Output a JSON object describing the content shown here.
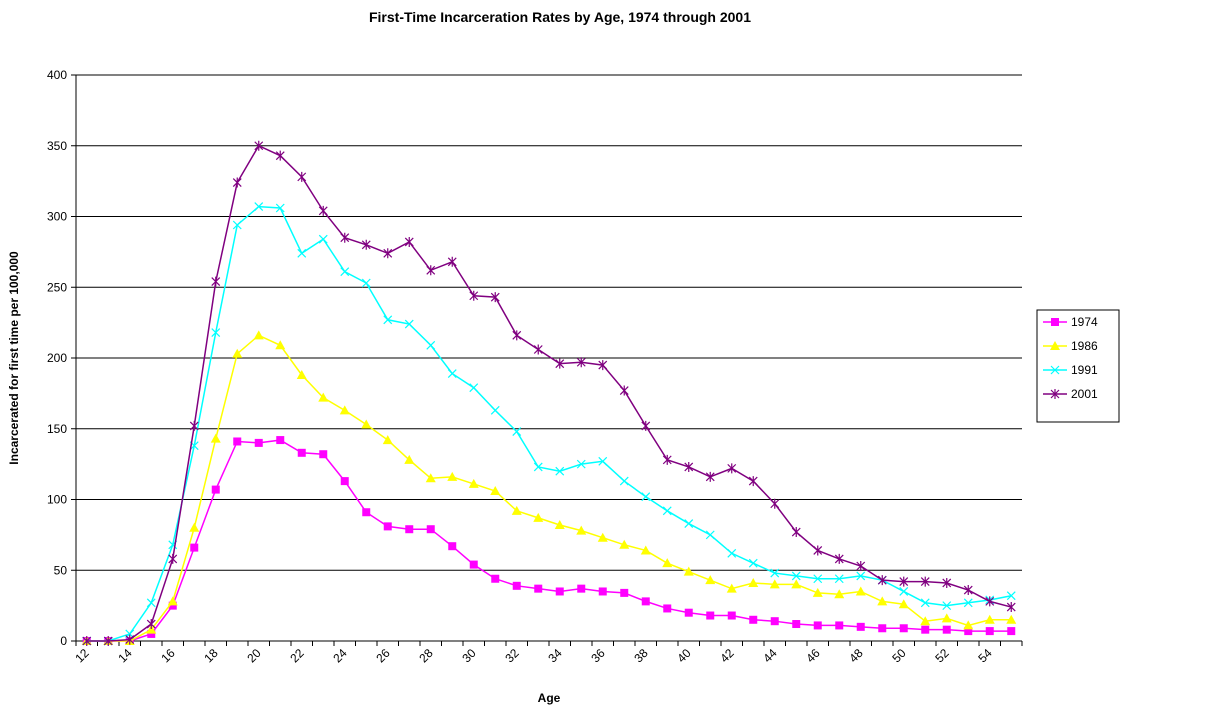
{
  "chart_data": {
    "type": "line",
    "title": "First-Time Incarceration Rates by Age, 1974 through 2001",
    "x_label": "Age",
    "y_label": "Incarcerated for first time per 100,000",
    "categories": [
      "12",
      null,
      "14",
      null,
      "16",
      null,
      "18",
      null,
      "20",
      null,
      "22",
      null,
      "24",
      null,
      "26",
      null,
      "28",
      null,
      "30",
      null,
      "32",
      null,
      "34",
      null,
      "36",
      null,
      "38",
      null,
      "40",
      null,
      "42",
      null,
      "44",
      null,
      "46",
      null,
      "48",
      null,
      "50",
      null,
      "52",
      null,
      "54",
      null
    ],
    "ylim": [
      0,
      400
    ],
    "yticks": [
      0,
      50,
      100,
      150,
      200,
      250,
      300,
      350,
      400
    ],
    "grid": true,
    "legend": "right",
    "series": [
      {
        "name": "1974",
        "color": "#FF00FF",
        "marker": "square",
        "values": [
          0,
          0,
          0,
          5,
          25,
          66,
          107,
          141,
          140,
          142,
          133,
          132,
          113,
          91,
          81,
          79,
          79,
          67,
          54,
          44,
          39,
          37,
          35,
          37,
          35,
          34,
          28,
          23,
          20,
          18,
          18,
          15,
          14,
          12,
          11,
          11,
          10,
          9,
          9,
          8,
          8,
          7,
          7,
          7
        ]
      },
      {
        "name": "1986",
        "color": "#FFFF00",
        "marker": "triangle",
        "values": [
          0,
          0,
          0,
          8,
          28,
          80,
          143,
          203,
          216,
          209,
          188,
          172,
          163,
          153,
          142,
          128,
          115,
          116,
          111,
          106,
          92,
          87,
          82,
          78,
          73,
          68,
          64,
          55,
          49,
          43,
          37,
          41,
          40,
          40,
          34,
          33,
          35,
          28,
          26,
          14,
          16,
          11,
          15,
          15
        ]
      },
      {
        "name": "1991",
        "color": "#00FFFF",
        "marker": "x",
        "values": [
          0,
          0,
          5,
          27,
          68,
          138,
          218,
          294,
          307,
          306,
          274,
          284,
          261,
          253,
          227,
          224,
          209,
          189,
          179,
          163,
          148,
          123,
          120,
          125,
          127,
          113,
          102,
          92,
          83,
          75,
          62,
          55,
          48,
          46,
          44,
          44,
          46,
          43,
          35,
          27,
          25,
          27,
          29,
          32
        ]
      },
      {
        "name": "2001",
        "color": "#800080",
        "marker": "star",
        "values": [
          0,
          0,
          1,
          12,
          58,
          152,
          254,
          324,
          350,
          343,
          328,
          304,
          285,
          280,
          274,
          282,
          262,
          268,
          244,
          243,
          216,
          206,
          196,
          197,
          195,
          177,
          152,
          128,
          123,
          116,
          122,
          113,
          97,
          77,
          64,
          58,
          53,
          43,
          42,
          42,
          41,
          36,
          28,
          24
        ]
      }
    ]
  }
}
